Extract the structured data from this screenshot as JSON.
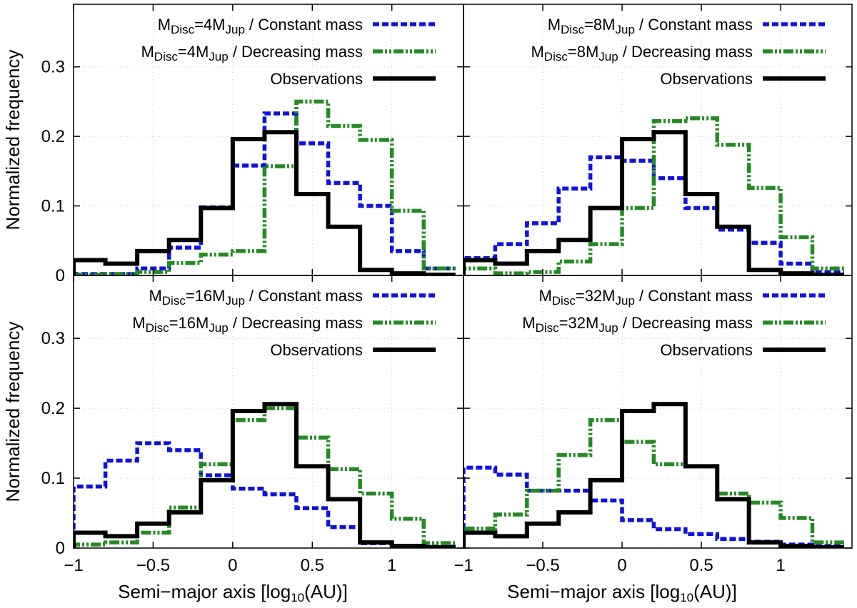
{
  "chart_data": {
    "type": "step-histogram",
    "shared": {
      "xlabel_prefix": "Semi",
      "xlabel_dash": "−",
      "xlabel_mid": "major axis [log",
      "xlabel_sub": "10",
      "xlabel_suffix": "(AU)]",
      "ylabel": "Normalized frequency",
      "xlim": [
        -1.0,
        1.45
      ],
      "ylim": [
        0,
        0.39
      ],
      "x_ticks": [
        -1,
        -0.5,
        0,
        0.5,
        1
      ],
      "x_tick_labels": [
        "−1",
        "−0.5",
        "0",
        "0.5",
        "1"
      ],
      "y_ticks": [
        0,
        0.1,
        0.2,
        0.3
      ],
      "y_tick_labels": [
        "0",
        "0.1",
        "0.2",
        "0.3"
      ],
      "bin_edges": [
        -1.0,
        -0.8,
        -0.6,
        -0.4,
        -0.2,
        0.0,
        0.2,
        0.4,
        0.6,
        0.8,
        1.0,
        1.2,
        1.4
      ],
      "grid": true
    },
    "observations": {
      "name": "Observations",
      "color": "#000000",
      "values": [
        0.022,
        0.017,
        0.035,
        0.051,
        0.097,
        0.196,
        0.206,
        0.117,
        0.07,
        0.008,
        0.003,
        0.001
      ]
    },
    "panels": [
      {
        "id": "4mjup",
        "disc_mass": "4",
        "legend": {
          "const_prefix": "M",
          "const_sub1": "Disc",
          "const_mid": "=4M",
          "const_sub2": "Jup",
          "const_suffix": " / Constant mass",
          "dec_prefix": "M",
          "dec_sub1": "Disc",
          "dec_mid": "=4M",
          "dec_sub2": "Jup",
          "dec_suffix": " / Decreasing mass",
          "obs": "Observations"
        },
        "series": [
          {
            "name": "Constant mass",
            "color": "#1010e0",
            "values": [
              0.002,
              0.002,
              0.01,
              0.04,
              0.098,
              0.158,
              0.233,
              0.19,
              0.133,
              0.1,
              0.035,
              0.01
            ]
          },
          {
            "name": "Decreasing mass",
            "color": "#228b22",
            "values": [
              0.001,
              0.002,
              0.005,
              0.018,
              0.03,
              0.035,
              0.157,
              0.25,
              0.215,
              0.195,
              0.093,
              0.01
            ]
          }
        ]
      },
      {
        "id": "8mjup",
        "disc_mass": "8",
        "legend": {
          "const_prefix": "M",
          "const_sub1": "Disc",
          "const_mid": "=8M",
          "const_sub2": "Jup",
          "const_suffix": " / Constant mass",
          "dec_prefix": "M",
          "dec_sub1": "Disc",
          "dec_mid": "=8M",
          "dec_sub2": "Jup",
          "dec_suffix": " / Decreasing mass",
          "obs": "Observations"
        },
        "series": [
          {
            "name": "Constant mass",
            "color": "#1010e0",
            "values": [
              0.025,
              0.045,
              0.075,
              0.125,
              0.17,
              0.165,
              0.14,
              0.097,
              0.066,
              0.047,
              0.017,
              0.005
            ]
          },
          {
            "name": "Decreasing mass",
            "color": "#228b22",
            "values": [
              0.01,
              0.003,
              0.005,
              0.02,
              0.045,
              0.097,
              0.222,
              0.226,
              0.188,
              0.126,
              0.055,
              0.01
            ]
          }
        ]
      },
      {
        "id": "16mjup",
        "disc_mass": "16",
        "legend": {
          "const_prefix": "M",
          "const_sub1": "Disc",
          "const_mid": "=16M",
          "const_sub2": "Jup",
          "const_suffix": " / Constant mass",
          "dec_prefix": "M",
          "dec_sub1": "Disc",
          "dec_mid": "=16M",
          "dec_sub2": "Jup",
          "dec_suffix": " / Decreasing mass",
          "obs": "Observations"
        },
        "series": [
          {
            "name": "Constant mass",
            "color": "#1010e0",
            "values": [
              0.088,
              0.125,
              0.15,
              0.14,
              0.104,
              0.085,
              0.077,
              0.057,
              0.03,
              0.007,
              0.003,
              0.002
            ]
          },
          {
            "name": "Decreasing mass",
            "color": "#228b22",
            "values": [
              0.005,
              0.008,
              0.022,
              0.058,
              0.12,
              0.183,
              0.2,
              0.158,
              0.113,
              0.078,
              0.042,
              0.007
            ]
          }
        ]
      },
      {
        "id": "32mjup",
        "disc_mass": "32",
        "legend": {
          "const_prefix": "M",
          "const_sub1": "Disc",
          "const_mid": "=32M",
          "const_sub2": "Jup",
          "const_suffix": " / Constant mass",
          "dec_prefix": "M",
          "dec_sub1": "Disc",
          "dec_mid": "=32M",
          "dec_sub2": "Jup",
          "dec_suffix": " / Decreasing mass",
          "obs": "Observations"
        },
        "series": [
          {
            "name": "Constant mass",
            "color": "#1010e0",
            "values": [
              0.115,
              0.105,
              0.082,
              0.082,
              0.068,
              0.04,
              0.027,
              0.02,
              0.013,
              0.009,
              0.005,
              0.003
            ]
          },
          {
            "name": "Decreasing mass",
            "color": "#228b22",
            "values": [
              0.028,
              0.048,
              0.082,
              0.133,
              0.183,
              0.152,
              0.12,
              0.117,
              0.078,
              0.065,
              0.043,
              0.008
            ]
          }
        ]
      }
    ]
  }
}
